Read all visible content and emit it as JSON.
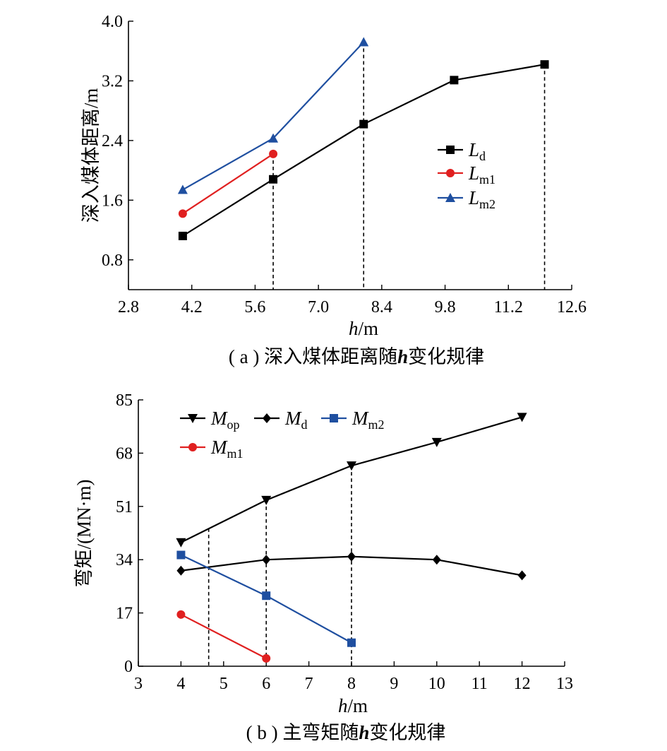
{
  "chart_data": [
    {
      "type": "line",
      "caption": {
        "prefix": "( a )  深入煤体距离随",
        "var": "h",
        "suffix": "变化规律"
      },
      "xlabel": {
        "var": "h",
        "unit": "/m"
      },
      "ylabel": "深入煤体距离/m",
      "xlim": [
        2.8,
        12.6
      ],
      "ylim": [
        0.4,
        4.0
      ],
      "xticks": [
        "2.8",
        "4.2",
        "5.6",
        "7.0",
        "8.4",
        "9.8",
        "11.2",
        "12.6"
      ],
      "yticks": [
        "0.8",
        "1.6",
        "2.4",
        "3.2",
        "4.0"
      ],
      "legend_position": "right",
      "series": [
        {
          "name": "L",
          "sub": "d",
          "marker": "square",
          "color": "#000000",
          "x": [
            4,
            6,
            8,
            10,
            12
          ],
          "y": [
            1.12,
            1.88,
            2.62,
            3.21,
            3.42
          ]
        },
        {
          "name": "L",
          "sub": "m1",
          "marker": "circle",
          "color": "#e02020",
          "x": [
            4,
            6
          ],
          "y": [
            1.42,
            2.22
          ]
        },
        {
          "name": "L",
          "sub": "m2",
          "marker": "triangle",
          "color": "#1f4fa0",
          "x": [
            4,
            6,
            8
          ],
          "y": [
            1.74,
            2.43,
            3.72
          ]
        }
      ],
      "dashed_guides": [
        {
          "x": 6,
          "y": 2.22
        },
        {
          "x": 8,
          "y": 3.72
        },
        {
          "x": 12,
          "y": 3.42
        }
      ]
    },
    {
      "type": "line",
      "caption": {
        "prefix": "( b ) 主弯矩随",
        "var": "h",
        "suffix": "变化规律"
      },
      "xlabel": {
        "var": "h",
        "unit": "/m"
      },
      "ylabel": "弯矩/(MN·m)",
      "xlim": [
        3,
        13
      ],
      "ylim": [
        0,
        85
      ],
      "xticks": [
        "3",
        "4",
        "5",
        "6",
        "7",
        "8",
        "9",
        "10",
        "11",
        "12",
        "13"
      ],
      "yticks": [
        "0",
        "17",
        "34",
        "51",
        "68",
        "85"
      ],
      "legend_position": "top-left",
      "series": [
        {
          "name": "M",
          "sub": "op",
          "marker": "triangle-down",
          "color": "#000000",
          "x": [
            4,
            6,
            8,
            10,
            12
          ],
          "y": [
            39.5,
            53,
            64,
            71.5,
            79.5
          ]
        },
        {
          "name": "M",
          "sub": "d",
          "marker": "diamond",
          "color": "#000000",
          "x": [
            4,
            6,
            8,
            10,
            12
          ],
          "y": [
            30.5,
            34,
            35,
            34,
            29
          ]
        },
        {
          "name": "M",
          "sub": "m2",
          "marker": "square",
          "color": "#1f4fa0",
          "x": [
            4,
            6,
            8
          ],
          "y": [
            35.5,
            22.5,
            7.5
          ]
        },
        {
          "name": "M",
          "sub": "m1",
          "marker": "circle",
          "color": "#e02020",
          "x": [
            4,
            6
          ],
          "y": [
            16.5,
            2.5
          ]
        }
      ],
      "dashed_guides": [
        {
          "x": 4.65,
          "y": 44
        },
        {
          "x": 6,
          "y": 53
        },
        {
          "x": 8,
          "y": 64
        }
      ]
    }
  ]
}
